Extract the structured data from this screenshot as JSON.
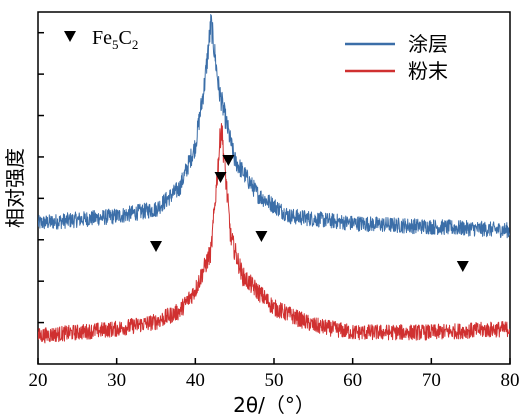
{
  "chart_data": {
    "type": "line",
    "xlabel": "2θ/（°）",
    "ylabel": "相对强度",
    "xlim": [
      20,
      80
    ],
    "x_ticks": [
      "20",
      "30",
      "40",
      "50",
      "60",
      "70",
      "80"
    ],
    "y_ticks_labeled": false,
    "legend_position": "top-right",
    "marker_legend": {
      "label_main": "Fe",
      "sub1": "5",
      "label_mid": "C",
      "sub2": "2",
      "symbol": "down-triangle"
    },
    "series": [
      {
        "name": "涂层",
        "color": "#3b6ea8",
        "peak_2theta": 42.0,
        "points": [
          [
            20,
            0.4
          ],
          [
            30,
            0.42
          ],
          [
            35,
            0.44
          ],
          [
            38,
            0.5
          ],
          [
            40,
            0.62
          ],
          [
            41.2,
            0.8
          ],
          [
            42.0,
            0.97
          ],
          [
            43.0,
            0.78
          ],
          [
            45,
            0.58
          ],
          [
            48,
            0.48
          ],
          [
            52,
            0.42
          ],
          [
            60,
            0.4
          ],
          [
            70,
            0.39
          ],
          [
            80,
            0.38
          ]
        ]
      },
      {
        "name": "粉末",
        "color": "#d03030",
        "peak_2theta": 43.3,
        "points": [
          [
            20,
            0.08
          ],
          [
            30,
            0.1
          ],
          [
            35,
            0.12
          ],
          [
            38,
            0.15
          ],
          [
            40,
            0.21
          ],
          [
            42,
            0.32
          ],
          [
            43.3,
            0.68
          ],
          [
            44.5,
            0.36
          ],
          [
            46,
            0.25
          ],
          [
            50,
            0.16
          ],
          [
            55,
            0.11
          ],
          [
            60,
            0.09
          ],
          [
            70,
            0.09
          ],
          [
            80,
            0.1
          ]
        ]
      }
    ],
    "markers_2theta": [
      35.0,
      43.2,
      44.2,
      48.4,
      74.0
    ]
  }
}
